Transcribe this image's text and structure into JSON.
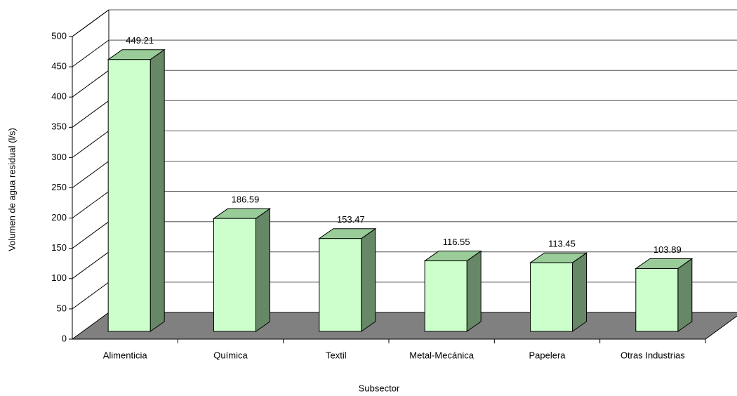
{
  "chart_data": {
    "type": "bar3d",
    "x_label": "Subsector",
    "y_label": "Volumen de agua residual (l/s)",
    "categories": [
      "Alimenticia",
      "Química",
      "Textil",
      "Metal-Mecánica",
      "Papelera",
      "Otras Industrias"
    ],
    "values": [
      449.21,
      186.59,
      153.47,
      116.55,
      113.45,
      103.89
    ],
    "color": "#ccffcc",
    "ylim": [
      0,
      500
    ],
    "yticks": [
      0,
      50,
      100,
      150,
      200,
      250,
      300,
      350,
      400,
      450,
      500
    ],
    "grid": true
  }
}
